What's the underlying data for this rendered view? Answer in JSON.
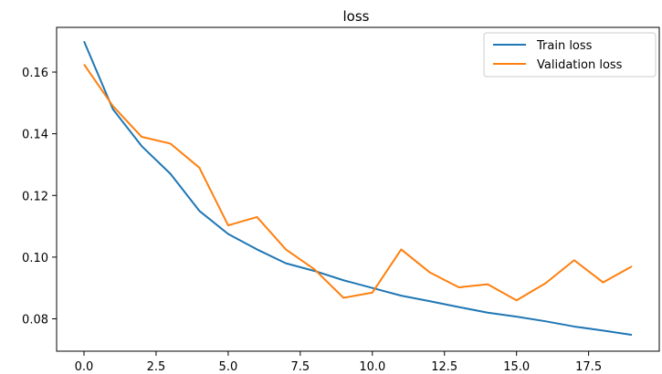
{
  "chart_data": {
    "type": "line",
    "title": "loss",
    "xlabel": "",
    "ylabel": "",
    "xlim": [
      -0.95,
      19.95
    ],
    "ylim": [
      0.0695,
      0.1745
    ],
    "x_ticks": [
      0.0,
      2.5,
      5.0,
      7.5,
      10.0,
      12.5,
      15.0,
      17.5
    ],
    "x_tick_labels": [
      "0.0",
      "2.5",
      "5.0",
      "7.5",
      "10.0",
      "12.5",
      "15.0",
      "17.5"
    ],
    "y_ticks": [
      0.08,
      0.1,
      0.12,
      0.14,
      0.16
    ],
    "y_tick_labels": [
      "0.08",
      "0.10",
      "0.12",
      "0.14",
      "0.16"
    ],
    "grid": false,
    "legend_position": "top-right",
    "x": [
      0,
      1,
      2,
      3,
      4,
      5,
      6,
      7,
      8,
      9,
      10,
      11,
      12,
      13,
      14,
      15,
      16,
      17,
      18,
      19
    ],
    "series": [
      {
        "name": "Train loss",
        "color": "#1f77b4",
        "values": [
          0.17,
          0.148,
          0.136,
          0.127,
          0.115,
          0.1075,
          0.1025,
          0.098,
          0.0955,
          0.0925,
          0.09,
          0.0875,
          0.0857,
          0.0838,
          0.082,
          0.0807,
          0.0792,
          0.0775,
          0.0762,
          0.0748
        ]
      },
      {
        "name": "Validation loss",
        "color": "#ff7f0e",
        "values": [
          0.1625,
          0.149,
          0.139,
          0.1368,
          0.129,
          0.1103,
          0.113,
          0.1025,
          0.096,
          0.0868,
          0.0885,
          0.1025,
          0.095,
          0.0902,
          0.0912,
          0.086,
          0.0915,
          0.099,
          0.0918,
          0.097
        ]
      }
    ]
  }
}
